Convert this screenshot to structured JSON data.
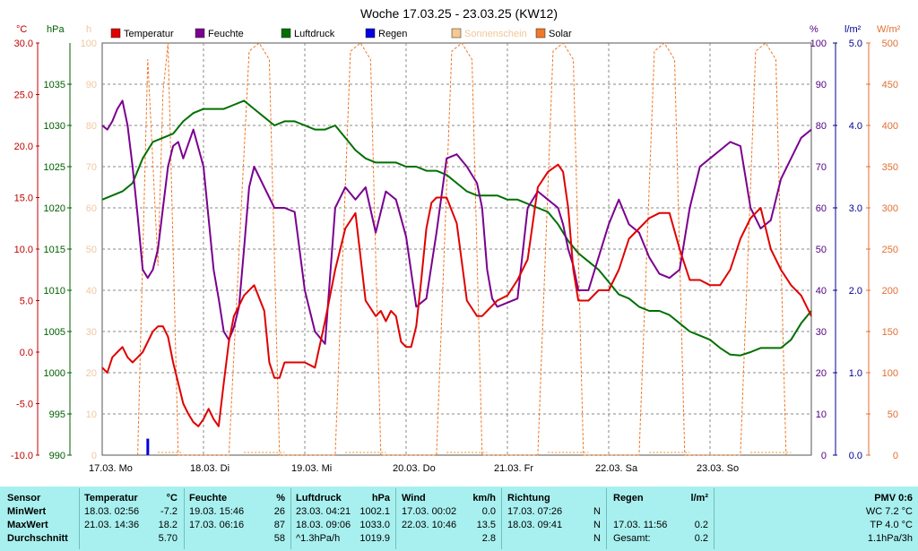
{
  "chart_data": {
    "type": "line",
    "title": "Woche 17.03.25 - 23.03.25 (KW12)",
    "x_labels": [
      "17.03.  Mo",
      "18.03.  Di",
      "19.03.  Mi",
      "20.03.  Do",
      "21.03.  Fr",
      "22.03.  Sa",
      "23.03.  So"
    ],
    "legend": [
      {
        "name": "Temperatur",
        "color": "#e00000"
      },
      {
        "name": "Feuchte",
        "color": "#7a0090"
      },
      {
        "name": "Luftdruck",
        "color": "#007000"
      },
      {
        "name": "Regen",
        "color": "#0000e0"
      },
      {
        "name": "Sonnenschein",
        "color": "#f8c890"
      },
      {
        "name": "Solar",
        "color": "#f07828"
      }
    ],
    "axes": {
      "temp": {
        "unit": "°C",
        "ticks": [
          "30.0",
          "25.0",
          "20.0",
          "15.0",
          "10.0",
          "5.0",
          "0.0",
          "-5.0",
          "-10.0"
        ],
        "min": -10,
        "max": 30,
        "color": "#c00000"
      },
      "pressure": {
        "unit": "hPa",
        "ticks": [
          "1035",
          "1030",
          "1025",
          "1020",
          "1015",
          "1010",
          "1005",
          "1000",
          "995",
          "990"
        ],
        "min": 990,
        "max": 1040,
        "color": "#006000"
      },
      "sunshine": {
        "unit": "h",
        "ticks": [
          "100",
          "90",
          "80",
          "70",
          "60",
          "50",
          "40",
          "30",
          "20",
          "10",
          "0"
        ],
        "min": 0,
        "max": 100,
        "color": "#f0c8a0"
      },
      "humidity": {
        "unit": "%",
        "ticks": [
          "100",
          "90",
          "80",
          "70",
          "60",
          "50",
          "40",
          "30",
          "20",
          "10",
          "0"
        ],
        "min": 0,
        "max": 100,
        "color": "#500080"
      },
      "rain": {
        "unit": "l/m²",
        "ticks": [
          "5.0",
          "4.0",
          "3.0",
          "2.0",
          "1.0",
          "0.0"
        ],
        "min": 0,
        "max": 5,
        "color": "#000090"
      },
      "solar": {
        "unit": "W/m²",
        "ticks": [
          "500",
          "450",
          "400",
          "350",
          "300",
          "250",
          "200",
          "150",
          "100",
          "50",
          "0"
        ],
        "min": 0,
        "max": 500,
        "color": "#e07030"
      }
    },
    "series": [
      {
        "name": "Temperatur",
        "color": "#e00000",
        "axis": "temp",
        "x": [
          0,
          0.05,
          0.1,
          0.15,
          0.2,
          0.25,
          0.3,
          0.35,
          0.4,
          0.45,
          0.5,
          0.55,
          0.6,
          0.65,
          0.7,
          0.75,
          0.8,
          0.85,
          0.9,
          0.95,
          1.0,
          1.05,
          1.1,
          1.15,
          1.2,
          1.25,
          1.3,
          1.35,
          1.4,
          1.5,
          1.6,
          1.65,
          1.7,
          1.75,
          1.8,
          1.9,
          2.0,
          2.1,
          2.2,
          2.3,
          2.4,
          2.5,
          2.6,
          2.7,
          2.75,
          2.8,
          2.85,
          2.9,
          2.95,
          3.0,
          3.05,
          3.1,
          3.15,
          3.2,
          3.25,
          3.3,
          3.4,
          3.5,
          3.6,
          3.7,
          3.75,
          3.8,
          3.85,
          3.9,
          4.0,
          4.1,
          4.2,
          4.3,
          4.4,
          4.5,
          4.55,
          4.6,
          4.65,
          4.7,
          4.8,
          4.9,
          5.0,
          5.1,
          5.2,
          5.3,
          5.4,
          5.5,
          5.6,
          5.7,
          5.8,
          5.9,
          6.0,
          6.1,
          6.2,
          6.3,
          6.4,
          6.5,
          6.6,
          6.7,
          6.8,
          6.9,
          7.0
        ],
        "y": [
          -1.5,
          -2,
          -0.5,
          0,
          0.5,
          -0.5,
          -1,
          -0.5,
          0,
          1,
          2,
          2.5,
          2.5,
          1.5,
          -1,
          -3,
          -5,
          -6,
          -6.8,
          -7.2,
          -6.5,
          -5.5,
          -6.5,
          -7.2,
          -3,
          1,
          3.5,
          4.5,
          5.5,
          6.5,
          4,
          -1,
          -2.5,
          -2.5,
          -1,
          -1,
          -1,
          -1.5,
          3,
          8,
          12,
          13.5,
          5,
          3.5,
          4,
          3,
          4,
          3.5,
          1,
          0.5,
          0.5,
          2.5,
          7,
          12,
          14.5,
          15,
          15,
          12.5,
          5,
          3.5,
          3.5,
          4,
          4.5,
          5,
          5.5,
          7,
          9,
          16,
          17.5,
          18.2,
          17.5,
          14,
          8,
          5,
          5,
          6,
          6,
          8,
          11,
          12,
          13,
          13.5,
          13.5,
          10,
          7,
          7,
          6.5,
          6.5,
          8,
          11,
          13,
          14,
          10,
          8,
          6.5,
          5.5,
          3.5
        ],
        "decimals": 1
      },
      {
        "name": "Feuchte",
        "color": "#7a0090",
        "axis": "humidity",
        "x": [
          0,
          0.05,
          0.1,
          0.15,
          0.2,
          0.25,
          0.3,
          0.35,
          0.4,
          0.45,
          0.5,
          0.55,
          0.6,
          0.65,
          0.7,
          0.75,
          0.8,
          0.9,
          1.0,
          1.1,
          1.15,
          1.2,
          1.25,
          1.3,
          1.35,
          1.4,
          1.45,
          1.5,
          1.6,
          1.7,
          1.8,
          1.9,
          2.0,
          2.1,
          2.2,
          2.3,
          2.4,
          2.5,
          2.6,
          2.7,
          2.8,
          2.9,
          3.0,
          3.1,
          3.2,
          3.3,
          3.4,
          3.5,
          3.6,
          3.7,
          3.75,
          3.8,
          3.85,
          3.9,
          4.0,
          4.1,
          4.2,
          4.3,
          4.4,
          4.5,
          4.55,
          4.6,
          4.65,
          4.7,
          4.8,
          4.9,
          5.0,
          5.1,
          5.2,
          5.3,
          5.4,
          5.5,
          5.6,
          5.7,
          5.8,
          5.9,
          6.0,
          6.1,
          6.2,
          6.3,
          6.4,
          6.5,
          6.6,
          6.7,
          6.8,
          6.9,
          7.0
        ],
        "y": [
          80,
          79,
          81,
          84,
          86,
          80,
          70,
          58,
          45,
          43,
          45,
          50,
          60,
          70,
          75,
          76,
          72,
          79,
          70,
          45,
          38,
          30,
          28,
          31,
          36,
          50,
          65,
          70,
          65,
          60,
          60,
          59,
          40,
          30,
          27,
          60,
          65,
          62,
          65,
          54,
          64,
          62,
          53,
          36,
          38,
          54,
          72,
          73,
          70,
          66,
          60,
          45,
          38,
          36,
          37,
          38,
          60,
          64,
          62,
          60,
          56,
          50,
          46,
          40,
          40,
          48,
          56,
          62,
          56,
          54,
          48,
          44,
          43,
          45,
          60,
          70,
          72,
          74,
          76,
          75,
          60,
          55,
          57,
          67,
          72,
          77,
          79
        ],
        "decimals": 0
      },
      {
        "name": "Luftdruck",
        "color": "#007000",
        "axis": "pressure",
        "x": [
          0,
          0.1,
          0.2,
          0.3,
          0.4,
          0.5,
          0.6,
          0.7,
          0.8,
          0.9,
          1.0,
          1.1,
          1.2,
          1.3,
          1.4,
          1.5,
          1.6,
          1.7,
          1.8,
          1.9,
          2.0,
          2.1,
          2.2,
          2.3,
          2.4,
          2.5,
          2.6,
          2.7,
          2.8,
          2.9,
          3.0,
          3.1,
          3.2,
          3.3,
          3.4,
          3.5,
          3.6,
          3.7,
          3.8,
          3.9,
          4.0,
          4.1,
          4.2,
          4.3,
          4.4,
          4.5,
          4.6,
          4.7,
          4.8,
          4.9,
          5.0,
          5.1,
          5.2,
          5.3,
          5.4,
          5.5,
          5.6,
          5.7,
          5.8,
          5.9,
          6.0,
          6.1,
          6.2,
          6.3,
          6.4,
          6.5,
          6.6,
          6.7,
          6.8,
          6.9,
          7.0
        ],
        "y": [
          1021,
          1021.5,
          1022,
          1023,
          1026,
          1028,
          1028.5,
          1029,
          1030.5,
          1031.5,
          1032,
          1032,
          1032,
          1032.5,
          1033,
          1032,
          1031,
          1030,
          1030.5,
          1030.5,
          1030,
          1029.5,
          1029.5,
          1030,
          1028.5,
          1027,
          1026,
          1025.5,
          1025.5,
          1025.5,
          1025,
          1025,
          1024.5,
          1024.5,
          1024,
          1023,
          1022,
          1021.5,
          1021.5,
          1021.5,
          1021,
          1021,
          1020.5,
          1020,
          1019.5,
          1018,
          1016,
          1014.5,
          1013.5,
          1012.5,
          1011,
          1009.5,
          1009,
          1008,
          1007.5,
          1007.5,
          1007,
          1006,
          1005,
          1004.5,
          1004,
          1003,
          1002.2,
          1002.1,
          1002.5,
          1003,
          1003,
          1003,
          1004,
          1006,
          1007.5
        ],
        "decimals": 1
      },
      {
        "name": "Regen",
        "color": "#0000e0",
        "axis": "rain",
        "x": [
          0.45
        ],
        "y": [
          0.2
        ],
        "decimals": 1
      },
      {
        "name": "Solar",
        "color": "#f07828",
        "axis": "solar",
        "x": [
          0.35,
          0.45,
          0.55,
          0.6,
          0.65,
          0.75,
          1.25,
          1.45,
          1.55,
          1.65,
          1.75,
          2.3,
          2.45,
          2.55,
          2.65,
          2.75,
          3.3,
          3.45,
          3.55,
          3.65,
          3.75,
          4.3,
          4.45,
          4.55,
          4.65,
          4.75,
          5.3,
          5.45,
          5.55,
          5.65,
          5.75,
          6.3,
          6.45,
          6.55,
          6.65,
          6.75
        ],
        "y": [
          0,
          480,
          230,
          440,
          500,
          0,
          0,
          490,
          500,
          480,
          0,
          0,
          490,
          500,
          480,
          0,
          0,
          490,
          500,
          480,
          0,
          0,
          490,
          500,
          480,
          0,
          0,
          490,
          500,
          480,
          0,
          0,
          490,
          500,
          480,
          0
        ],
        "decimals": 0
      },
      {
        "name": "Sonnenschein",
        "color": "#f8c890",
        "axis": "sunshine",
        "x": [
          0.55,
          0.8,
          1.4,
          1.8,
          2.4,
          2.8,
          3.4,
          3.8,
          4.4,
          4.8,
          5.4,
          5.8,
          6.4,
          6.8
        ],
        "y": [
          1,
          1,
          1,
          1,
          1,
          1,
          1,
          1,
          1,
          1,
          1,
          1,
          1,
          1
        ],
        "decimals": 0
      }
    ],
    "grid": true,
    "legend_position": "top"
  },
  "stats": {
    "columns": [
      {
        "header": "Sensor",
        "rows": [
          "MinWert",
          "MaxWert",
          "Durchschnitt"
        ]
      },
      {
        "header": "Temperatur",
        "unit": "°C",
        "rows": [
          [
            "18.03.  02:56",
            "-7.2"
          ],
          [
            "21.03.  14:36",
            "18.2"
          ],
          [
            "",
            "5.70"
          ]
        ]
      },
      {
        "header": "Feuchte",
        "unit": "%",
        "rows": [
          [
            "19.03.  15:46",
            "26"
          ],
          [
            "17.03.  06:16",
            "87"
          ],
          [
            "",
            "58"
          ]
        ]
      },
      {
        "header": "Luftdruck",
        "unit": "hPa",
        "rows": [
          [
            "23.03.  04:21",
            "1002.1"
          ],
          [
            "18.03.  09:06",
            "1033.0"
          ],
          [
            "^1.3hPa/h",
            "1019.9"
          ]
        ]
      },
      {
        "header": "Wind",
        "unit": "km/h",
        "rows": [
          [
            "17.03.  00:02",
            "0.0"
          ],
          [
            "22.03.  10:46",
            "13.5"
          ],
          [
            "",
            "2.8"
          ]
        ]
      },
      {
        "header": "Richtung",
        "unit": "",
        "rows": [
          [
            "17.03.  07:26",
            "N"
          ],
          [
            "18.03.  09:41",
            "N"
          ],
          [
            "",
            "N"
          ]
        ]
      },
      {
        "header": "Regen",
        "unit": "l/m²",
        "rows": [
          [
            "",
            ""
          ],
          [
            "17.03.  11:56",
            "0.2"
          ],
          [
            "Gesamt:",
            "0.2"
          ]
        ]
      },
      {
        "header": "PMV 0:6",
        "unit": "",
        "rows": [
          [
            "WC 7.2 °C",
            ""
          ],
          [
            "TP 4.0 °C",
            ""
          ],
          [
            "1.1hPa/3h",
            ""
          ]
        ]
      }
    ]
  }
}
